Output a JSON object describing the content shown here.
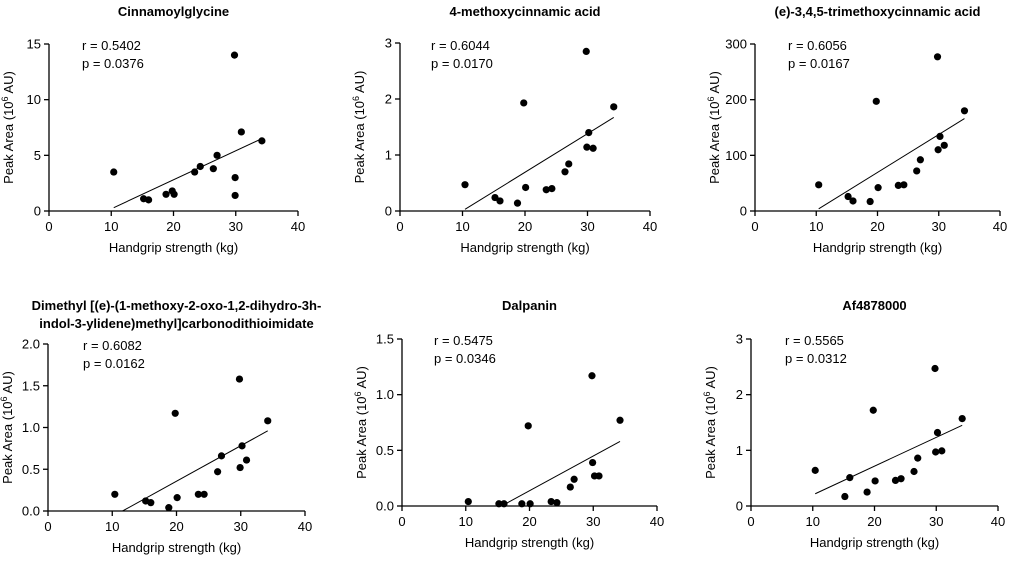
{
  "figure": {
    "ylabel_main": "Peak Area (10",
    "ylabel_exp": "6",
    "ylabel_unit": " AU)"
  },
  "chart_data": [
    {
      "type": "scatter",
      "title": [
        "Cinnamoylglycine"
      ],
      "xlabel": "Handgrip strength (kg)",
      "ylabel": "Peak Area (10^6 AU)",
      "xlim": [
        0,
        40
      ],
      "ylim": [
        0,
        15
      ],
      "xticks": [
        0,
        10,
        20,
        30,
        40
      ],
      "yticks": [
        0,
        5,
        10,
        15
      ],
      "ytick_labels": [
        "0",
        "5",
        "10",
        "15"
      ],
      "annotation": [
        "r = 0.5402",
        "p = 0.0376"
      ],
      "fit": [
        [
          10.4,
          0.3
        ],
        [
          34.2,
          6.5
        ]
      ],
      "points": [
        [
          10.4,
          3.5
        ],
        [
          15.2,
          1.1
        ],
        [
          16.0,
          1.0
        ],
        [
          18.8,
          1.5
        ],
        [
          19.8,
          1.8
        ],
        [
          20.1,
          1.5
        ],
        [
          23.4,
          3.5
        ],
        [
          24.3,
          4.0
        ],
        [
          26.4,
          3.8
        ],
        [
          27.0,
          5.0
        ],
        [
          29.8,
          14.0
        ],
        [
          29.9,
          3.0
        ],
        [
          29.9,
          1.4
        ],
        [
          30.9,
          7.1
        ],
        [
          34.2,
          6.3
        ]
      ]
    },
    {
      "type": "scatter",
      "title": [
        "4-methoxycinnamic acid"
      ],
      "xlabel": "Handgrip strength (kg)",
      "ylabel": "Peak Area (10^6 AU)",
      "xlim": [
        0,
        40
      ],
      "ylim": [
        0,
        3
      ],
      "xticks": [
        0,
        10,
        20,
        30,
        40
      ],
      "yticks": [
        0,
        1,
        2,
        3
      ],
      "ytick_labels": [
        "0",
        "1",
        "2",
        "3"
      ],
      "annotation": [
        "r = 0.6044",
        "p = 0.0170"
      ],
      "fit": [
        [
          10.4,
          0.03
        ],
        [
          34.2,
          1.67
        ]
      ],
      "points": [
        [
          10.4,
          0.47
        ],
        [
          15.2,
          0.24
        ],
        [
          16.0,
          0.18
        ],
        [
          18.8,
          0.14
        ],
        [
          19.8,
          1.93
        ],
        [
          20.1,
          0.42
        ],
        [
          23.4,
          0.38
        ],
        [
          24.3,
          0.4
        ],
        [
          26.4,
          0.7
        ],
        [
          27.0,
          0.84
        ],
        [
          29.8,
          2.85
        ],
        [
          29.9,
          1.14
        ],
        [
          30.2,
          1.4
        ],
        [
          30.9,
          1.12
        ],
        [
          34.2,
          1.86
        ]
      ]
    },
    {
      "type": "scatter",
      "title": [
        "(e)-3,4,5-trimethoxycinnamic acid"
      ],
      "xlabel": "Handgrip strength (kg)",
      "ylabel": "Peak Area (10^6 AU)",
      "xlim": [
        0,
        40
      ],
      "ylim": [
        0,
        300
      ],
      "xticks": [
        0,
        10,
        20,
        30,
        40
      ],
      "yticks": [
        0,
        100,
        200,
        300
      ],
      "ytick_labels": [
        "0",
        "100",
        "200",
        "300"
      ],
      "annotation": [
        "r = 0.6056",
        "p = 0.0167"
      ],
      "fit": [
        [
          10.4,
          4
        ],
        [
          34.2,
          166
        ]
      ],
      "points": [
        [
          10.4,
          47
        ],
        [
          15.2,
          26
        ],
        [
          16.0,
          18
        ],
        [
          18.8,
          17
        ],
        [
          19.8,
          197
        ],
        [
          20.1,
          42
        ],
        [
          23.4,
          46
        ],
        [
          24.3,
          47
        ],
        [
          26.4,
          72
        ],
        [
          27.0,
          92
        ],
        [
          29.8,
          277
        ],
        [
          29.9,
          110
        ],
        [
          30.2,
          134
        ],
        [
          30.9,
          118
        ],
        [
          34.2,
          180
        ]
      ]
    },
    {
      "type": "scatter",
      "title": [
        "Dimethyl [(e)-(1-methoxy-2-oxo-1,2-dihydro-3h-",
        "indol-3-ylidene)methyl]carbonodithioimidate"
      ],
      "xlabel": "Handgrip strength (kg)",
      "ylabel": "Peak Area (10^6 AU)",
      "xlim": [
        0,
        40
      ],
      "ylim": [
        0,
        2.0
      ],
      "xticks": [
        0,
        10,
        20,
        30,
        40
      ],
      "yticks": [
        0,
        0.5,
        1.0,
        1.5,
        2.0
      ],
      "ytick_labels": [
        "0.0",
        "0.5",
        "1.0",
        "1.5",
        "2.0"
      ],
      "annotation": [
        "r = 0.6082",
        "p = 0.0162"
      ],
      "fit": [
        [
          11.6,
          0.0
        ],
        [
          34.2,
          0.96
        ]
      ],
      "points": [
        [
          10.4,
          0.2
        ],
        [
          15.2,
          0.12
        ],
        [
          16.0,
          0.1
        ],
        [
          18.8,
          0.04
        ],
        [
          19.8,
          1.17
        ],
        [
          20.1,
          0.16
        ],
        [
          23.4,
          0.2
        ],
        [
          24.3,
          0.2
        ],
        [
          26.4,
          0.47
        ],
        [
          27.0,
          0.66
        ],
        [
          29.8,
          1.58
        ],
        [
          29.9,
          0.52
        ],
        [
          30.2,
          0.78
        ],
        [
          30.9,
          0.61
        ],
        [
          34.2,
          1.08
        ]
      ]
    },
    {
      "type": "scatter",
      "title": [
        "Dalpanin"
      ],
      "xlabel": "Handgrip strength (kg)",
      "ylabel": "Peak Area (10^6 AU)",
      "xlim": [
        0,
        40
      ],
      "ylim": [
        0,
        1.5
      ],
      "xticks": [
        0,
        10,
        20,
        30,
        40
      ],
      "yticks": [
        0,
        0.5,
        1.0,
        1.5
      ],
      "ytick_labels": [
        "0.0",
        "0.5",
        "1.0",
        "1.5"
      ],
      "annotation": [
        "r = 0.5475",
        "p = 0.0346"
      ],
      "fit": [
        [
          15.6,
          0.0
        ],
        [
          34.2,
          0.58
        ]
      ],
      "points": [
        [
          10.4,
          0.04
        ],
        [
          15.2,
          0.02
        ],
        [
          16.0,
          0.02
        ],
        [
          18.8,
          0.02
        ],
        [
          19.8,
          0.72
        ],
        [
          20.1,
          0.02
        ],
        [
          23.4,
          0.04
        ],
        [
          24.3,
          0.03
        ],
        [
          26.4,
          0.17
        ],
        [
          27.0,
          0.24
        ],
        [
          29.8,
          1.17
        ],
        [
          29.9,
          0.39
        ],
        [
          30.2,
          0.27
        ],
        [
          30.9,
          0.27
        ],
        [
          34.2,
          0.77
        ]
      ]
    },
    {
      "type": "scatter",
      "title": [
        "Af4878000"
      ],
      "xlabel": "Handgrip strength (kg)",
      "ylabel": "Peak Area (10^6 AU)",
      "xlim": [
        0,
        40
      ],
      "ylim": [
        0,
        3
      ],
      "xticks": [
        0,
        10,
        20,
        30,
        40
      ],
      "yticks": [
        0,
        1,
        2,
        3
      ],
      "ytick_labels": [
        "0",
        "1",
        "2",
        "3"
      ],
      "annotation": [
        "r = 0.5565",
        "p = 0.0312"
      ],
      "fit": [
        [
          10.4,
          0.22
        ],
        [
          34.2,
          1.45
        ]
      ],
      "points": [
        [
          10.4,
          0.64
        ],
        [
          15.2,
          0.17
        ],
        [
          16.0,
          0.51
        ],
        [
          18.8,
          0.25
        ],
        [
          19.8,
          1.72
        ],
        [
          20.1,
          0.45
        ],
        [
          23.4,
          0.46
        ],
        [
          24.3,
          0.49
        ],
        [
          26.4,
          0.62
        ],
        [
          27.0,
          0.86
        ],
        [
          29.8,
          2.47
        ],
        [
          29.9,
          0.97
        ],
        [
          30.2,
          1.32
        ],
        [
          30.9,
          0.99
        ],
        [
          34.2,
          1.57
        ]
      ]
    }
  ]
}
